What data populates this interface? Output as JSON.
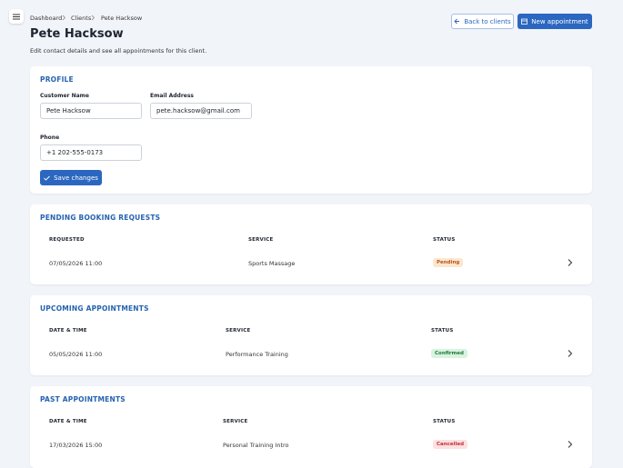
{
  "breadcrumb": [
    "Dashboard",
    "Clients",
    "Pete Hacksow"
  ],
  "buttons": {
    "back": "Back to clients",
    "new": "New appointment"
  },
  "header": {
    "title": "Pete Hacksow",
    "subtitle": "Edit contact details and see all appointments for this client."
  },
  "profile": {
    "heading": "PROFILE",
    "fields": [
      {
        "label": "Customer Name",
        "value": "Pete Hacksow"
      },
      {
        "label": "Email Address",
        "value": "pete.hacksow@gmail.com"
      },
      {
        "label": "Phone",
        "value": "+1 202-555-0173"
      }
    ],
    "save": "Save changes"
  },
  "pending": {
    "heading": "PENDING BOOKING REQUESTS",
    "columns": [
      "REQUESTED",
      "SERVICE",
      "STATUS"
    ],
    "rows": [
      [
        "07/05/2026 11:00",
        "Sports Massage",
        "Pending"
      ]
    ]
  },
  "upcoming": {
    "heading": "UPCOMING APPOINTMENTS",
    "columns": [
      "DATE & TIME",
      "SERVICE",
      "STATUS"
    ],
    "rows": [
      [
        "05/05/2026 11:00",
        "Performance Training",
        "Confirmed"
      ]
    ]
  },
  "past": {
    "heading": "PAST APPOINTMENTS",
    "columns": [
      "DATE & TIME",
      "SERVICE",
      "STATUS"
    ],
    "rows": [
      [
        "17/03/2026 15:00",
        "Personal Training Intro",
        "Cancelled"
      ]
    ]
  }
}
